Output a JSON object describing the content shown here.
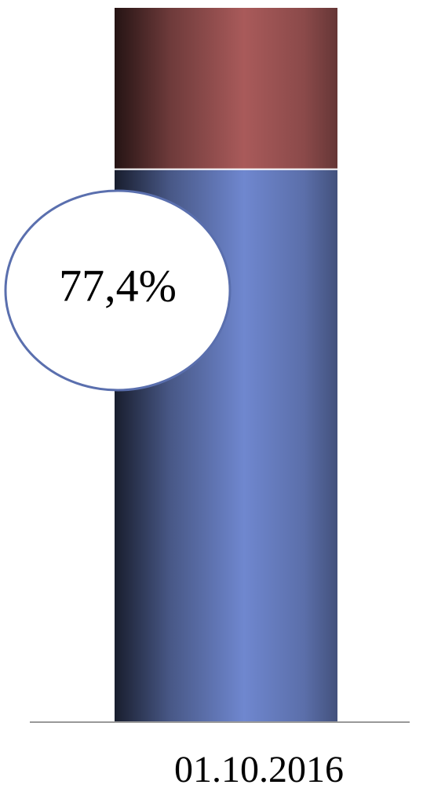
{
  "chart_data": {
    "type": "stacked_bar",
    "categories": [
      "01.10.2016"
    ],
    "series": [
      {
        "color": "#6f87cf",
        "values": [
          77.4
        ],
        "value_labels": [
          "77,4%"
        ]
      },
      {
        "color": "#a95a5a",
        "values": [
          22.6
        ]
      }
    ],
    "ylim": [
      0,
      100
    ]
  }
}
